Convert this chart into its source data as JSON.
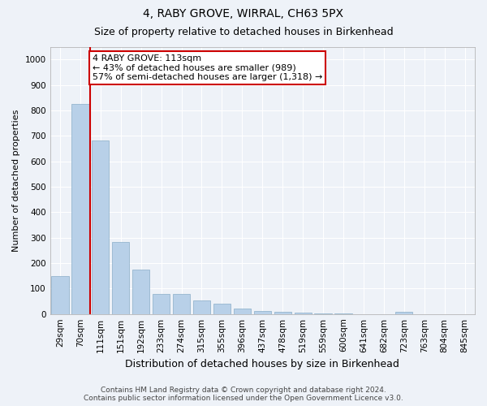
{
  "title": "4, RABY GROVE, WIRRAL, CH63 5PX",
  "subtitle": "Size of property relative to detached houses in Birkenhead",
  "xlabel": "Distribution of detached houses by size in Birkenhead",
  "ylabel": "Number of detached properties",
  "categories": [
    "29sqm",
    "70sqm",
    "111sqm",
    "151sqm",
    "192sqm",
    "233sqm",
    "274sqm",
    "315sqm",
    "355sqm",
    "396sqm",
    "437sqm",
    "478sqm",
    "519sqm",
    "559sqm",
    "600sqm",
    "641sqm",
    "682sqm",
    "723sqm",
    "763sqm",
    "804sqm",
    "845sqm"
  ],
  "values": [
    150,
    825,
    680,
    283,
    173,
    80,
    78,
    52,
    40,
    20,
    12,
    8,
    5,
    3,
    1,
    0,
    0,
    9,
    0,
    0,
    0
  ],
  "bar_color": "#b8d0e8",
  "bar_edge_color": "#8aadc8",
  "vline_x_index": 2,
  "vline_color": "#cc0000",
  "annotation_line1": "4 RABY GROVE: 113sqm",
  "annotation_line2": "← 43% of detached houses are smaller (989)",
  "annotation_line3": "57% of semi-detached houses are larger (1,318) →",
  "annotation_box_color": "#ffffff",
  "annotation_box_edge_color": "#cc0000",
  "ylim": [
    0,
    1050
  ],
  "yticks": [
    0,
    100,
    200,
    300,
    400,
    500,
    600,
    700,
    800,
    900,
    1000
  ],
  "footer_line1": "Contains HM Land Registry data © Crown copyright and database right 2024.",
  "footer_line2": "Contains public sector information licensed under the Open Government Licence v3.0.",
  "bg_color": "#eef2f8",
  "grid_color": "#ffffff",
  "title_fontsize": 10,
  "subtitle_fontsize": 9,
  "xlabel_fontsize": 9,
  "ylabel_fontsize": 8,
  "tick_fontsize": 7.5,
  "annotation_fontsize": 8,
  "footer_fontsize": 6.5
}
